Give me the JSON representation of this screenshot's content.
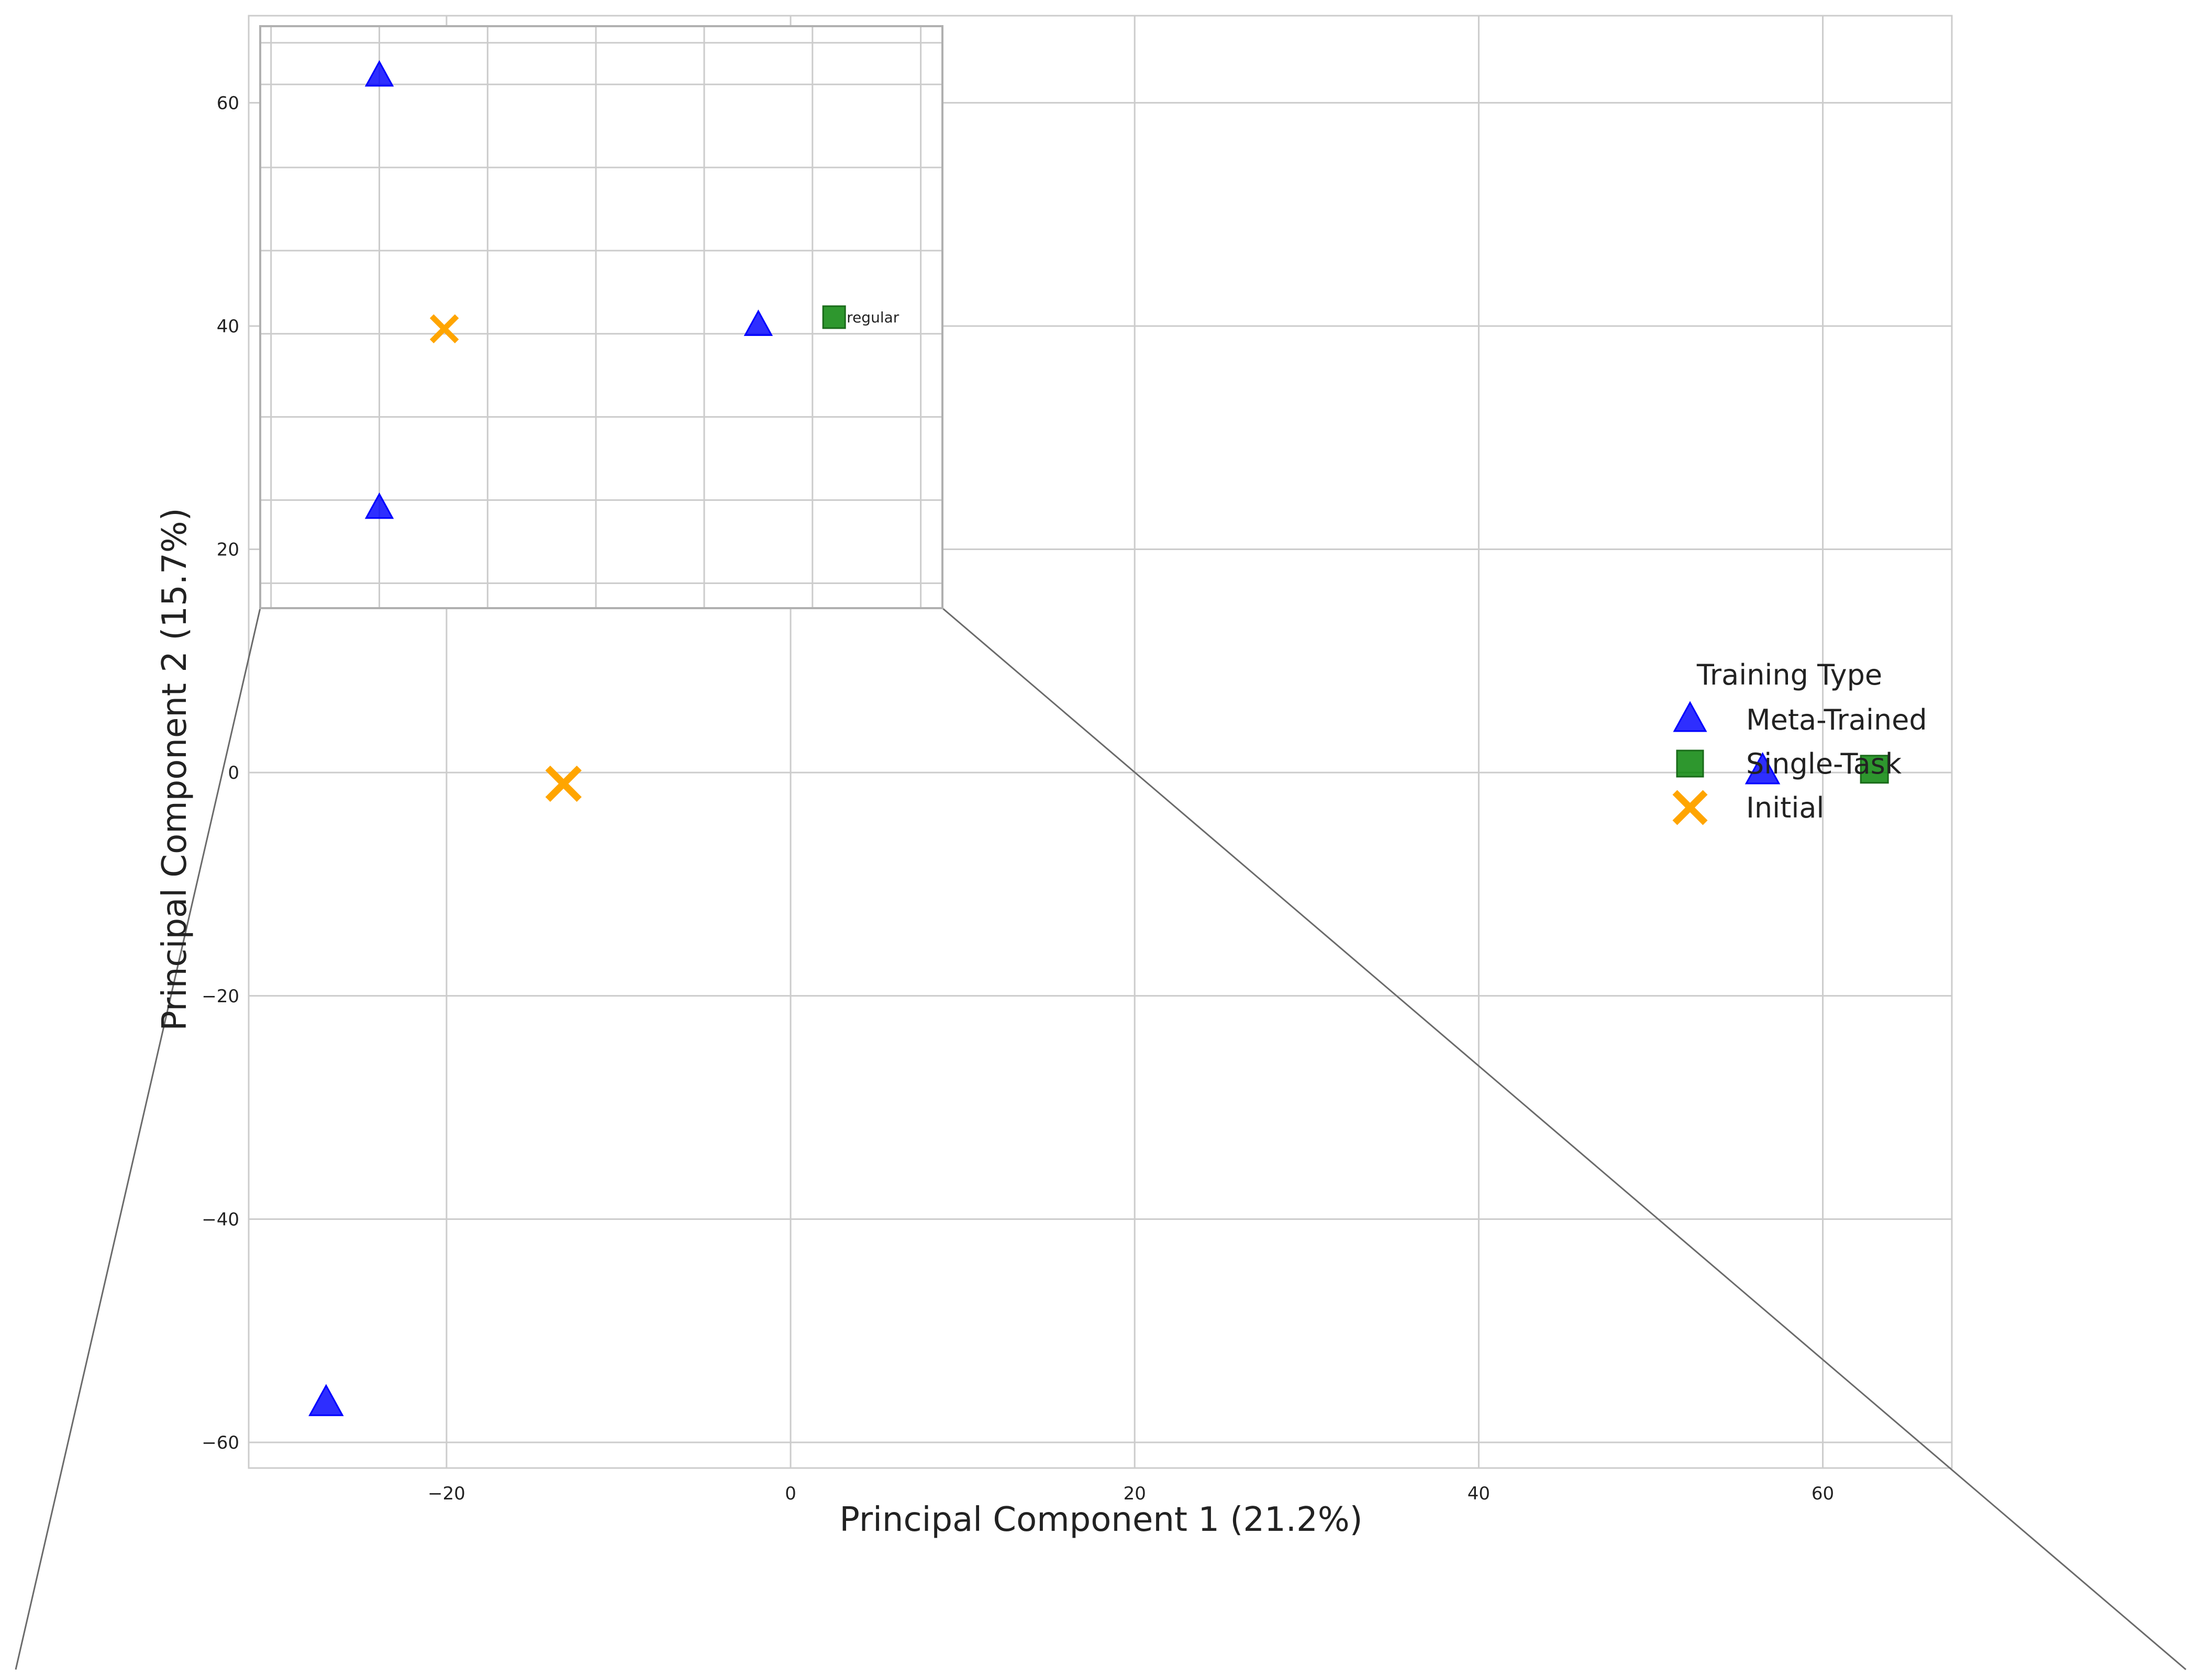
{
  "chart_data": {
    "type": "scatter",
    "xlabel": "Principal Component 1 (21.2%)",
    "ylabel": "Principal Component 2 (15.7%)",
    "xlim": [
      -31.5,
      67.5
    ],
    "ylim": [
      -62.3,
      67.8
    ],
    "xticks": [
      -20,
      0,
      20,
      40,
      60
    ],
    "yticks": [
      -60,
      -40,
      -20,
      0,
      20,
      40,
      60
    ],
    "grid": true,
    "legend": {
      "title": "Training Type",
      "placement": "right",
      "entries": [
        {
          "label": "Meta-Trained",
          "marker": "triangle",
          "color": "#0000ff"
        },
        {
          "label": "Single-Task",
          "marker": "square",
          "color": "#008000"
        },
        {
          "label": "Initial",
          "marker": "x",
          "color": "#ffa500"
        }
      ]
    },
    "series": [
      {
        "name": "Meta-Trained",
        "marker": "triangle",
        "color": "#0000ff",
        "points": [
          {
            "x": -27.0,
            "y": -56.5
          },
          {
            "x": 56.5,
            "y": 0.1
          }
        ]
      },
      {
        "name": "Single-Task",
        "marker": "square",
        "color": "#008000",
        "points": [
          {
            "x": 63.0,
            "y": 0.3
          }
        ]
      },
      {
        "name": "Initial",
        "marker": "x",
        "color": "#ffa500",
        "points": [
          {
            "x": -13.2,
            "y": -1.0
          }
        ]
      }
    ],
    "inset": {
      "xlim": [
        -2.6,
        3.7
      ],
      "ylim": [
        -1.4,
        2.1
      ],
      "grid": true,
      "series": [
        {
          "name": "Meta-Trained",
          "marker": "triangle",
          "color": "#0000ff",
          "points": [
            {
              "x": -1.5,
              "y": 1.8
            },
            {
              "x": -1.5,
              "y": -0.8
            },
            {
              "x": 2.0,
              "y": 0.3
            }
          ]
        },
        {
          "name": "Single-Task",
          "marker": "square",
          "color": "#008000",
          "points": [
            {
              "x": 2.7,
              "y": 0.35,
              "label": "regular"
            }
          ]
        },
        {
          "name": "Initial",
          "marker": "x",
          "color": "#ffa500",
          "points": [
            {
              "x": -0.9,
              "y": 0.28
            }
          ]
        }
      ]
    }
  }
}
